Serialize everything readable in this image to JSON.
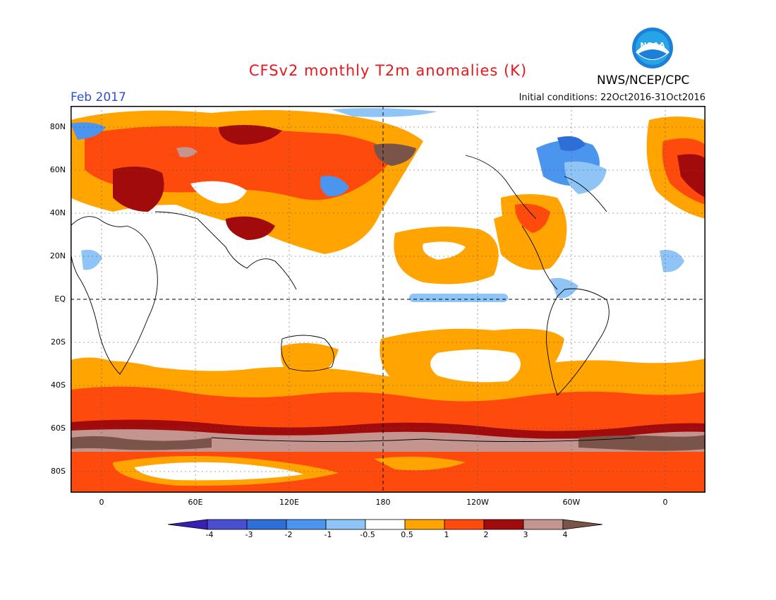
{
  "title": "CFSv2 monthly T2m anomalies (K)",
  "agency": "NWS/NCEP/CPC",
  "logo_text": "NOAA",
  "month": "Feb 2017",
  "initial_conditions": "Initial conditions: 22Oct2016-31Oct2016",
  "y_axis_labels": [
    "80N",
    "60N",
    "40N",
    "20N",
    "EQ",
    "20S",
    "40S",
    "60S",
    "80S"
  ],
  "x_axis_labels": [
    "0",
    "60E",
    "120E",
    "180",
    "120W",
    "60W",
    "0"
  ],
  "colorbar": {
    "tick_labels": [
      "-4",
      "-3",
      "-2",
      "-1",
      "-0.5",
      "0.5",
      "1",
      "2",
      "3",
      "4"
    ],
    "colors": [
      "#3a1fb5",
      "#4a4fd1",
      "#2d6fd6",
      "#4b95ef",
      "#8fc4f6",
      "#ffffff",
      "#ffa400",
      "#ff4a0e",
      "#a10b0b",
      "#c3958e",
      "#7a5448"
    ]
  }
}
